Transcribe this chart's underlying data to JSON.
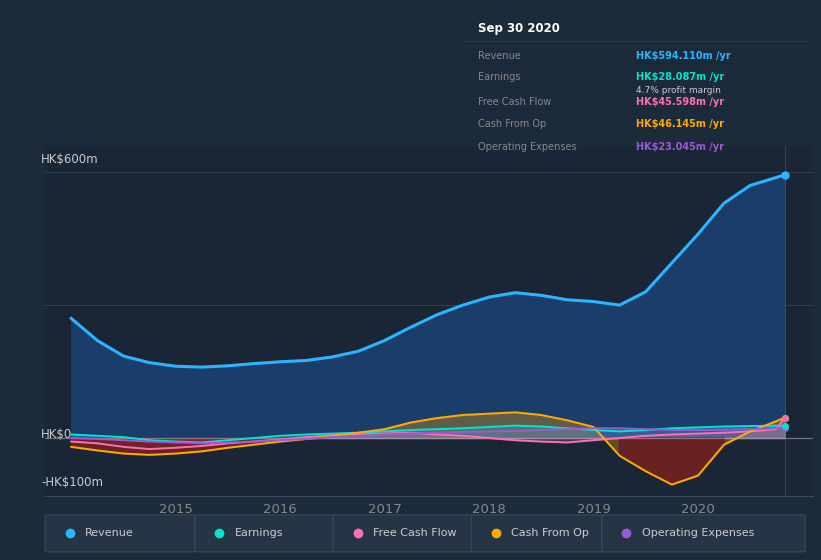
{
  "bg_color": "#1c2b3a",
  "plot_bg_color": "#1a2535",
  "grid_color": "#2a3a4a",
  "y_label_HK600": "HK$600m",
  "y_label_HK0": "HK$0",
  "y_label_HKm100": "-HK$100m",
  "ylim": [
    -130,
    660
  ],
  "xlim_start": 2013.75,
  "xlim_end": 2021.1,
  "years": [
    2014.0,
    2014.25,
    2014.5,
    2014.75,
    2015.0,
    2015.25,
    2015.5,
    2015.75,
    2016.0,
    2016.25,
    2016.5,
    2016.75,
    2017.0,
    2017.25,
    2017.5,
    2017.75,
    2018.0,
    2018.25,
    2018.5,
    2018.75,
    2019.0,
    2019.25,
    2019.5,
    2019.75,
    2020.0,
    2020.25,
    2020.5,
    2020.75,
    2020.83
  ],
  "revenue": [
    270,
    220,
    185,
    170,
    162,
    160,
    163,
    168,
    172,
    175,
    183,
    196,
    220,
    250,
    278,
    300,
    318,
    328,
    322,
    312,
    308,
    300,
    330,
    395,
    460,
    530,
    570,
    588,
    594
  ],
  "earnings": [
    8,
    5,
    2,
    -5,
    -8,
    -10,
    -5,
    0,
    5,
    8,
    10,
    12,
    15,
    18,
    20,
    22,
    25,
    28,
    26,
    22,
    18,
    15,
    18,
    22,
    24,
    26,
    27,
    28,
    28
  ],
  "free_cash_flow": [
    -8,
    -12,
    -20,
    -25,
    -22,
    -18,
    -12,
    -8,
    -3,
    2,
    6,
    8,
    10,
    12,
    8,
    5,
    0,
    -5,
    -8,
    -10,
    -5,
    0,
    5,
    8,
    10,
    12,
    15,
    20,
    46
  ],
  "cash_from_op": [
    -20,
    -28,
    -35,
    -38,
    -35,
    -30,
    -22,
    -15,
    -8,
    -2,
    5,
    12,
    20,
    35,
    45,
    52,
    55,
    58,
    52,
    40,
    25,
    -40,
    -75,
    -105,
    -85,
    -15,
    15,
    38,
    46
  ],
  "operating_expenses": [
    0,
    -2,
    -5,
    -8,
    -10,
    -12,
    -10,
    -8,
    -5,
    -2,
    2,
    5,
    8,
    10,
    12,
    14,
    15,
    16,
    18,
    20,
    22,
    22,
    20,
    18,
    18,
    19,
    20,
    22,
    23
  ],
  "revenue_color": "#2bb5ff",
  "revenue_fill_color": "#1a4070",
  "earnings_color": "#00e5cc",
  "free_cash_flow_color": "#ff6eb4",
  "cash_from_op_color": "#ffaa00",
  "operating_expenses_color": "#9b59d6",
  "tooltip_date": "Sep 30 2020",
  "tooltip_revenue_val": "HK$594.110m",
  "tooltip_earnings_val": "HK$28.087m",
  "tooltip_profit_margin": "4.7%",
  "tooltip_fcf_val": "HK$45.598m",
  "tooltip_cashop_val": "HK$46.145m",
  "tooltip_opex_val": "HK$23.045m",
  "xticks": [
    2015,
    2016,
    2017,
    2018,
    2019,
    2020
  ],
  "legend_labels": [
    "Revenue",
    "Earnings",
    "Free Cash Flow",
    "Cash From Op",
    "Operating Expenses"
  ]
}
